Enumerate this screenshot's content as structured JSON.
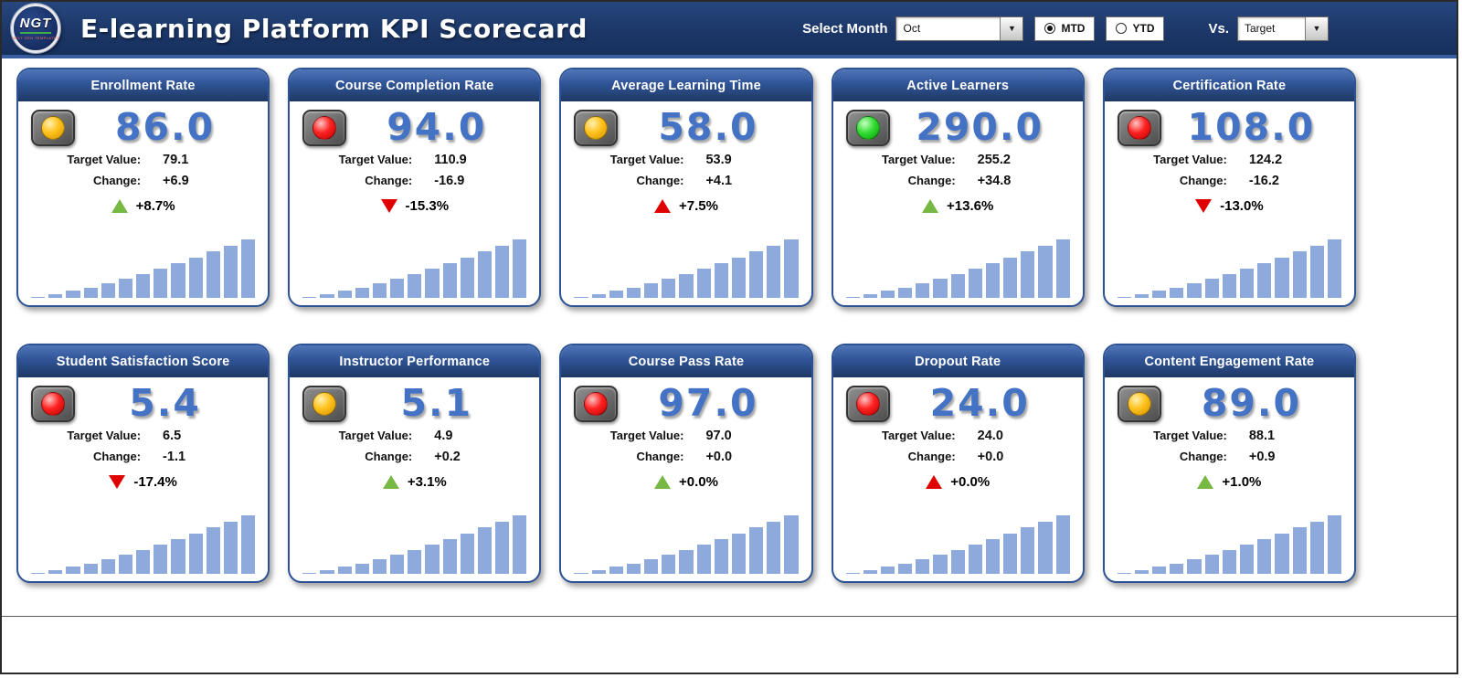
{
  "header": {
    "logo_text": "NGT",
    "logo_subtext": "NEXT GEN TEMPLATES",
    "title": "E-learning Platform KPI Scorecard",
    "select_month_label": "Select Month",
    "month_value": "Oct",
    "period_options": {
      "mtd": "MTD",
      "ytd": "YTD",
      "selected": "MTD"
    },
    "vs_label": "Vs.",
    "vs_value": "Target"
  },
  "labels": {
    "target_value": "Target Value:",
    "change": "Change:"
  },
  "icons": {
    "dropdown_arrow": "▼"
  },
  "colors": {
    "header_navy": "#1f3864",
    "card_header_blue": "#2f5496",
    "value_blue": "#4472c4",
    "spark_bar": "#8ea9db",
    "up_green": "#77b843",
    "down_red": "#e00000",
    "light_red": "#ff2222",
    "light_yellow": "#ffc21c",
    "light_green": "#35dd35"
  },
  "cards": [
    {
      "title": "Enrollment Rate",
      "light": "yellow",
      "value": "86.0",
      "target": "79.1",
      "change": "+6.9",
      "pct": "+8.7%",
      "arrow": "up",
      "arrow_color": "green"
    },
    {
      "title": "Course Completion Rate",
      "light": "red",
      "value": "94.0",
      "target": "110.9",
      "change": "-16.9",
      "pct": "-15.3%",
      "arrow": "down",
      "arrow_color": "red"
    },
    {
      "title": "Average Learning Time",
      "light": "yellow",
      "value": "58.0",
      "target": "53.9",
      "change": "+4.1",
      "pct": "+7.5%",
      "arrow": "up",
      "arrow_color": "red"
    },
    {
      "title": "Active Learners",
      "light": "green",
      "value": "290.0",
      "target": "255.2",
      "change": "+34.8",
      "pct": "+13.6%",
      "arrow": "up",
      "arrow_color": "green"
    },
    {
      "title": "Certification Rate",
      "light": "red",
      "value": "108.0",
      "target": "124.2",
      "change": "-16.2",
      "pct": "-13.0%",
      "arrow": "down",
      "arrow_color": "red"
    },
    {
      "title": "Student Satisfaction Score",
      "light": "red",
      "value": "5.4",
      "target": "6.5",
      "change": "-1.1",
      "pct": "-17.4%",
      "arrow": "down",
      "arrow_color": "red"
    },
    {
      "title": "Instructor Performance",
      "light": "yellow",
      "value": "5.1",
      "target": "4.9",
      "change": "+0.2",
      "pct": "+3.1%",
      "arrow": "up",
      "arrow_color": "green"
    },
    {
      "title": "Course Pass Rate",
      "light": "red",
      "value": "97.0",
      "target": "97.0",
      "change": "+0.0",
      "pct": "+0.0%",
      "arrow": "up",
      "arrow_color": "green"
    },
    {
      "title": "Dropout Rate",
      "light": "red",
      "value": "24.0",
      "target": "24.0",
      "change": "+0.0",
      "pct": "+0.0%",
      "arrow": "up",
      "arrow_color": "red"
    },
    {
      "title": "Content Engagement Rate",
      "light": "yellow",
      "value": "89.0",
      "target": "88.1",
      "change": "+0.9",
      "pct": "+1.0%",
      "arrow": "up",
      "arrow_color": "green"
    }
  ],
  "chart_data": {
    "type": "bar",
    "title": "E-learning Platform KPI Scorecard — Oct, MTD vs Target",
    "kpis": [
      {
        "name": "Enrollment Rate",
        "actual": 86.0,
        "target": 79.1,
        "change": 6.9,
        "change_pct": 8.7,
        "status_light": "yellow",
        "trend": "up"
      },
      {
        "name": "Course Completion Rate",
        "actual": 94.0,
        "target": 110.9,
        "change": -16.9,
        "change_pct": -15.3,
        "status_light": "red",
        "trend": "down"
      },
      {
        "name": "Average Learning Time",
        "actual": 58.0,
        "target": 53.9,
        "change": 4.1,
        "change_pct": 7.5,
        "status_light": "yellow",
        "trend": "up"
      },
      {
        "name": "Active Learners",
        "actual": 290.0,
        "target": 255.2,
        "change": 34.8,
        "change_pct": 13.6,
        "status_light": "green",
        "trend": "up"
      },
      {
        "name": "Certification Rate",
        "actual": 108.0,
        "target": 124.2,
        "change": -16.2,
        "change_pct": -13.0,
        "status_light": "red",
        "trend": "down"
      },
      {
        "name": "Student Satisfaction Score",
        "actual": 5.4,
        "target": 6.5,
        "change": -1.1,
        "change_pct": -17.4,
        "status_light": "red",
        "trend": "down"
      },
      {
        "name": "Instructor Performance",
        "actual": 5.1,
        "target": 4.9,
        "change": 0.2,
        "change_pct": 3.1,
        "status_light": "yellow",
        "trend": "up"
      },
      {
        "name": "Course Pass Rate",
        "actual": 97.0,
        "target": 97.0,
        "change": 0.0,
        "change_pct": 0.0,
        "status_light": "red",
        "trend": "up"
      },
      {
        "name": "Dropout Rate",
        "actual": 24.0,
        "target": 24.0,
        "change": 0.0,
        "change_pct": 0.0,
        "status_light": "red",
        "trend": "up"
      },
      {
        "name": "Content Engagement Rate",
        "actual": 89.0,
        "target": 88.1,
        "change": 0.9,
        "change_pct": 1.0,
        "status_light": "yellow",
        "trend": "up"
      }
    ],
    "sparkline": {
      "type": "bar",
      "note": "each card shows the same ascending unlabeled mini bar trend, estimated relative heights",
      "relative_values": [
        1,
        4,
        8,
        12,
        17,
        22,
        28,
        34,
        40,
        47,
        54,
        61,
        68
      ]
    }
  }
}
